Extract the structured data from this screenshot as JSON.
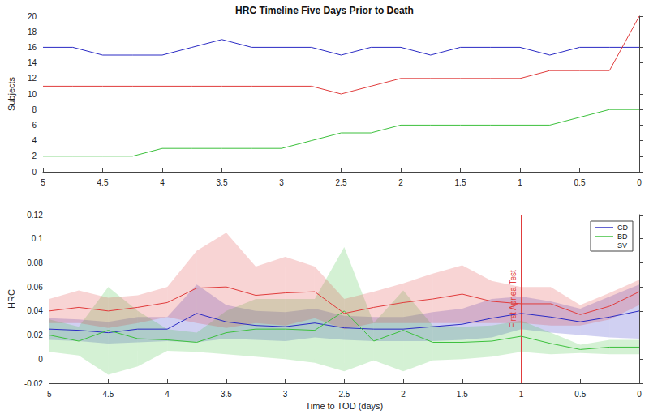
{
  "chart_data": [
    {
      "type": "line",
      "title": "HRC Timeline Five Days Prior to Death",
      "ylabel": "Subjects",
      "x": [
        5,
        4.75,
        4.5,
        4.25,
        4,
        3.75,
        3.5,
        3.25,
        3,
        2.75,
        2.5,
        2.25,
        2,
        1.75,
        1.5,
        1.25,
        1,
        0.75,
        0.5,
        0.25,
        0
      ],
      "xlim": [
        5,
        0
      ],
      "xticks": [
        5,
        4.5,
        4,
        3.5,
        3,
        2.5,
        2,
        1.5,
        1,
        0.5,
        0
      ],
      "ylim": [
        0,
        20
      ],
      "yticks": [
        0,
        2,
        4,
        6,
        8,
        10,
        12,
        14,
        16,
        18,
        20
      ],
      "grid": false,
      "series": [
        {
          "color": "#2b2bc4",
          "values": [
            16,
            16,
            15,
            15,
            15,
            16,
            17,
            16,
            16,
            16,
            15,
            16,
            16,
            15,
            16,
            16,
            16,
            15,
            16,
            16,
            16
          ]
        },
        {
          "color": "#e03c3c",
          "values": [
            11,
            11,
            11,
            11,
            11,
            11,
            11,
            11,
            11,
            11,
            10,
            11,
            12,
            12,
            12,
            12,
            12,
            13,
            13,
            13,
            20
          ]
        },
        {
          "color": "#3cc03c",
          "values": [
            2,
            2,
            2,
            2,
            3,
            3,
            3,
            3,
            3,
            4,
            5,
            5,
            6,
            6,
            6,
            6,
            6,
            6,
            7,
            8,
            8
          ]
        }
      ]
    },
    {
      "type": "line",
      "xlabel": "Time to TOD (days)",
      "ylabel": "HRC",
      "x": [
        5,
        4.75,
        4.5,
        4.25,
        4,
        3.75,
        3.5,
        3.25,
        3,
        2.75,
        2.5,
        2.25,
        2,
        1.75,
        1.5,
        1.25,
        1,
        0.75,
        0.5,
        0.25,
        0
      ],
      "xlim": [
        5,
        0
      ],
      "xticks": [
        5,
        4.5,
        4,
        3.5,
        3,
        2.5,
        2,
        1.5,
        1,
        0.5,
        0
      ],
      "ylim": [
        -0.02,
        0.12
      ],
      "yticks": [
        -0.02,
        0,
        0.02,
        0.04,
        0.06,
        0.08,
        0.1,
        0.12
      ],
      "grid": false,
      "legend": "upper right",
      "annotations": [
        {
          "text": "First Apnea Test",
          "x": 1
        }
      ],
      "series": [
        {
          "name": "CD",
          "color": "#2b2bc4",
          "values": [
            0.025,
            0.024,
            0.022,
            0.025,
            0.025,
            0.038,
            0.031,
            0.028,
            0.027,
            0.03,
            0.026,
            0.025,
            0.025,
            0.027,
            0.029,
            0.034,
            0.038,
            0.035,
            0.031,
            0.035,
            0.04
          ],
          "lower": [
            0.016,
            0.015,
            0.013,
            0.014,
            0.015,
            0.014,
            0.017,
            0.016,
            0.015,
            0.018,
            0.016,
            0.015,
            0.015,
            0.015,
            0.016,
            0.018,
            0.025,
            0.022,
            0.02,
            0.018,
            0.017
          ],
          "upper": [
            0.034,
            0.033,
            0.031,
            0.035,
            0.035,
            0.062,
            0.045,
            0.04,
            0.039,
            0.042,
            0.036,
            0.035,
            0.035,
            0.039,
            0.042,
            0.05,
            0.052,
            0.048,
            0.042,
            0.052,
            0.062
          ]
        },
        {
          "name": "BD",
          "color": "#3cc03c",
          "values": [
            0.02,
            0.015,
            0.024,
            0.017,
            0.016,
            0.014,
            0.022,
            0.025,
            0.025,
            0.024,
            0.04,
            0.015,
            0.024,
            0.014,
            0.014,
            0.015,
            0.019,
            0.013,
            0.008,
            0.01,
            0.01
          ],
          "lower": [
            0.006,
            0.003,
            -0.013,
            -0.006,
            0.007,
            0.006,
            0.004,
            0.002,
            0.0,
            -0.003,
            -0.01,
            -0.001,
            -0.01,
            -0.001,
            0.0,
            0.002,
            0.006,
            0.004,
            0.005,
            0.004,
            0.004
          ],
          "upper": [
            0.033,
            0.027,
            0.06,
            0.04,
            0.025,
            0.022,
            0.04,
            0.05,
            0.05,
            0.05,
            0.093,
            0.03,
            0.057,
            0.028,
            0.027,
            0.028,
            0.032,
            0.022,
            0.012,
            0.016,
            0.016
          ]
        },
        {
          "name": "SV",
          "color": "#e03c3c",
          "values": [
            0.04,
            0.043,
            0.04,
            0.043,
            0.047,
            0.059,
            0.06,
            0.053,
            0.055,
            0.056,
            0.038,
            0.043,
            0.047,
            0.05,
            0.054,
            0.048,
            0.046,
            0.046,
            0.037,
            0.044,
            0.056
          ],
          "lower": [
            0.03,
            0.03,
            0.026,
            0.03,
            0.035,
            0.03,
            0.026,
            0.03,
            0.028,
            0.034,
            0.025,
            0.03,
            0.03,
            0.03,
            0.03,
            0.03,
            0.03,
            0.028,
            0.028,
            0.033,
            0.045
          ],
          "upper": [
            0.05,
            0.057,
            0.051,
            0.053,
            0.06,
            0.09,
            0.105,
            0.077,
            0.085,
            0.077,
            0.05,
            0.056,
            0.063,
            0.071,
            0.078,
            0.065,
            0.06,
            0.06,
            0.045,
            0.055,
            0.066
          ]
        }
      ]
    }
  ]
}
